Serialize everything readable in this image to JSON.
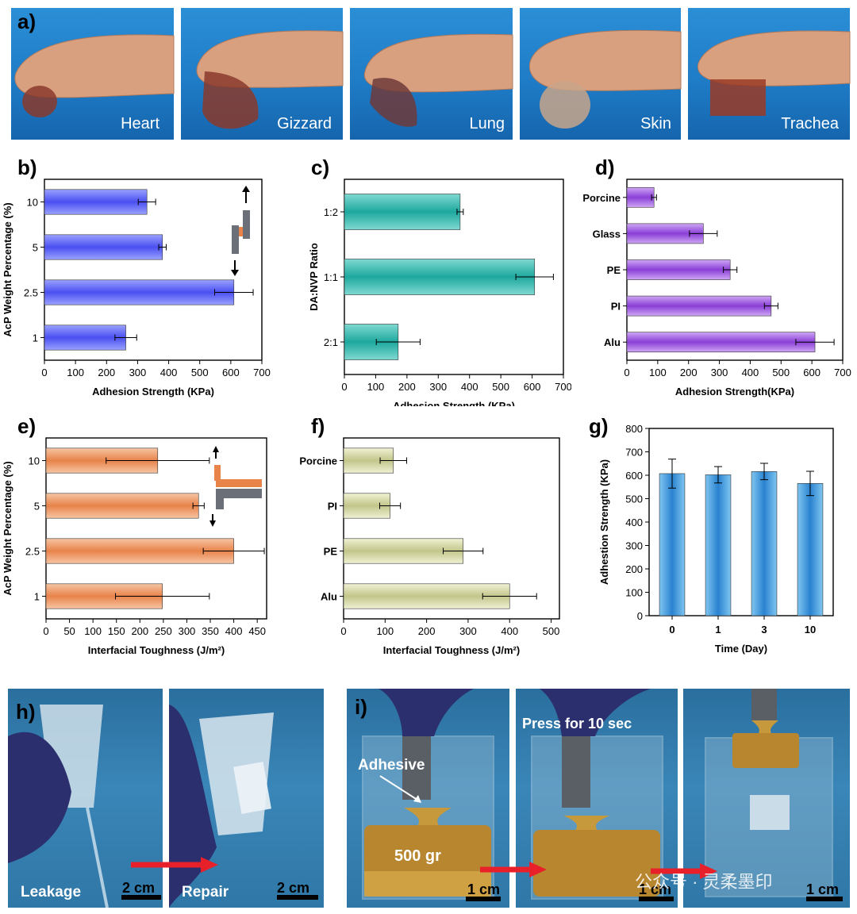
{
  "panel_a": {
    "letter": "a)",
    "labels": [
      "Heart",
      "Gizzard",
      "Lung",
      "Skin",
      "Trachea"
    ]
  },
  "chart_data": [
    {
      "id": "b",
      "letter": "b)",
      "type": "bar",
      "orientation": "horizontal",
      "categories": [
        "1",
        "2.5",
        "5",
        "10"
      ],
      "values": [
        262,
        610,
        380,
        330
      ],
      "errors": [
        35,
        62,
        12,
        28
      ],
      "xlabel": "Adhesion Strength (KPa)",
      "ylabel": "AcP Weight Percentage (%)",
      "xlim": [
        0,
        700
      ],
      "xticks": [
        0,
        100,
        200,
        300,
        400,
        500,
        600,
        700
      ],
      "colors": {
        "bar": "#4a4ff0",
        "bar_light": "#9aa2ff"
      }
    },
    {
      "id": "c",
      "letter": "c)",
      "type": "bar",
      "orientation": "horizontal",
      "categories": [
        "2:1",
        "1:1",
        "1:2"
      ],
      "values": [
        172,
        608,
        370
      ],
      "errors": [
        70,
        60,
        10
      ],
      "xlabel": "Adhesion Strength (KPa)",
      "ylabel": "DA:NVP Ratio",
      "xlim": [
        0,
        700
      ],
      "xticks": [
        0,
        100,
        200,
        300,
        400,
        500,
        600,
        700
      ],
      "colors": {
        "bar": "#1ea89e",
        "bar_light": "#7fd9d1"
      }
    },
    {
      "id": "d",
      "letter": "d)",
      "type": "bar",
      "orientation": "horizontal",
      "categories": [
        "Alu",
        "PI",
        "PE",
        "Glass",
        "Porcine"
      ],
      "values": [
        610,
        468,
        335,
        248,
        88
      ],
      "errors": [
        62,
        22,
        22,
        45,
        8
      ],
      "xlabel": "Adhesion Strength(KPa)",
      "ylabel": "",
      "xlim": [
        0,
        700
      ],
      "xticks": [
        0,
        100,
        200,
        300,
        400,
        500,
        600,
        700
      ],
      "colors": {
        "bar": "#8a3fd6",
        "bar_light": "#cfa6f5"
      }
    },
    {
      "id": "e",
      "letter": "e)",
      "type": "bar",
      "orientation": "horizontal",
      "categories": [
        "1",
        "2.5",
        "5",
        "10"
      ],
      "values": [
        248,
        400,
        325,
        238
      ],
      "errors": [
        100,
        65,
        12,
        110
      ],
      "xlabel": "Interfacial Toughness (J/m²)",
      "ylabel": "AcP Weight Percentage (%)",
      "xlim": [
        0,
        470
      ],
      "xticks": [
        0,
        50,
        100,
        150,
        200,
        250,
        300,
        350,
        400,
        450
      ],
      "colors": {
        "bar": "#e8834a",
        "bar_light": "#f7c5a3"
      }
    },
    {
      "id": "f",
      "letter": "f)",
      "type": "bar",
      "orientation": "horizontal",
      "categories": [
        "Alu",
        "PE",
        "PI",
        "Porcine"
      ],
      "values": [
        400,
        288,
        112,
        120
      ],
      "errors": [
        65,
        48,
        25,
        32
      ],
      "xlabel": "Interfacial Toughness (J/m²)",
      "ylabel": "",
      "xlim": [
        0,
        520
      ],
      "xticks": [
        0,
        100,
        200,
        300,
        400,
        500
      ],
      "colors": {
        "bar": "#c2c58a",
        "bar_light": "#f0f2d4"
      }
    },
    {
      "id": "g",
      "letter": "g)",
      "type": "bar",
      "orientation": "vertical",
      "categories": [
        "0",
        "1",
        "3",
        "10"
      ],
      "values": [
        607,
        602,
        616,
        565
      ],
      "errors": [
        62,
        35,
        35,
        52
      ],
      "xlabel": "Time (Day)",
      "ylabel": "Adhestion Strength (KPa)",
      "ylim": [
        0,
        800
      ],
      "yticks": [
        0,
        100,
        200,
        300,
        400,
        500,
        600,
        700,
        800
      ],
      "colors": {
        "bar": "#2a82cf",
        "bar_light": "#7fc6f2"
      }
    }
  ],
  "panel_h": {
    "letter": "h)",
    "left_label": "Leakage",
    "right_label": "Repair",
    "scale_left": "2 cm",
    "scale_right": "2 cm"
  },
  "panel_i": {
    "letter": "i)",
    "adhesive_label": "Adhesive",
    "weight_label": "500 gr",
    "press_label": "Press for 10 sec",
    "scale_1": "1 cm",
    "scale_2": "1 cm",
    "scale_3": "1 cm",
    "watermark": "公众号 · 灵柔墨印"
  }
}
